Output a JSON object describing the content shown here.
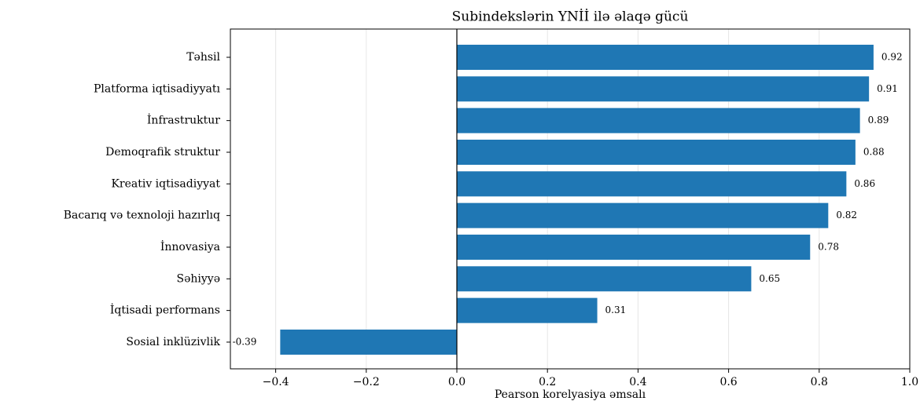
{
  "chart_data": {
    "type": "barh",
    "title": "Subindekslərin YNİİ ilə əlaqə gücü",
    "xlabel": "Pearson korelyasiya əmsalı",
    "categories": [
      "Təhsil",
      "Platforma iqtisadiyyatı",
      "İnfrastruktur",
      "Demoqrafik struktur",
      "Kreativ iqtisadiyyat",
      "Bacarıq və texnoloji hazırlıq",
      "İnnovasiya",
      "Səhiyyə",
      "İqtisadi performans",
      "Sosial inklüzivlik"
    ],
    "values": [
      0.92,
      0.91,
      0.89,
      0.88,
      0.86,
      0.82,
      0.78,
      0.65,
      0.31,
      -0.39
    ],
    "color": "#1f77b4",
    "xlim": [
      -0.5,
      1.0
    ],
    "xticks": [
      {
        "value": -0.4,
        "label": "−0.4"
      },
      {
        "value": -0.2,
        "label": "−0.2"
      },
      {
        "value": 0.0,
        "label": "0.0"
      },
      0.2,
      0.4,
      0.6,
      0.8,
      {
        "value": 1.0,
        "label": "1.0"
      }
    ],
    "grid": true
  }
}
